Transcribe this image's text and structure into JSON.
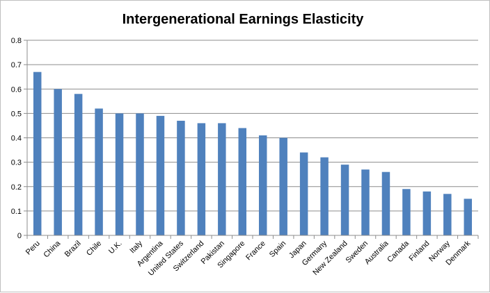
{
  "chart_data": {
    "type": "bar",
    "title": "Intergenerational Earnings Elasticity",
    "xlabel": "",
    "ylabel": "",
    "categories": [
      "Peru",
      "China",
      "Brazil",
      "Chile",
      "U.K.",
      "Italy",
      "Argentina",
      "United States",
      "Switzerland",
      "Pakistan",
      "Singapore",
      "France",
      "Spain",
      "Japan",
      "Germany",
      "New Zealand",
      "Sweden",
      "Australia",
      "Canada",
      "Finland",
      "Norway",
      "Denmark"
    ],
    "values": [
      0.67,
      0.6,
      0.58,
      0.52,
      0.5,
      0.5,
      0.49,
      0.47,
      0.46,
      0.46,
      0.44,
      0.41,
      0.4,
      0.34,
      0.32,
      0.29,
      0.27,
      0.26,
      0.19,
      0.18,
      0.17,
      0.15
    ],
    "ylim": [
      0,
      0.8
    ],
    "yticks": [
      "0",
      "0.1",
      "0.2",
      "0.3",
      "0.4",
      "0.5",
      "0.6",
      "0.7",
      "0.8"
    ],
    "grid": true,
    "legend": "none",
    "bar_color": "#4f81bd",
    "grid_color": "#8c8c8c"
  }
}
